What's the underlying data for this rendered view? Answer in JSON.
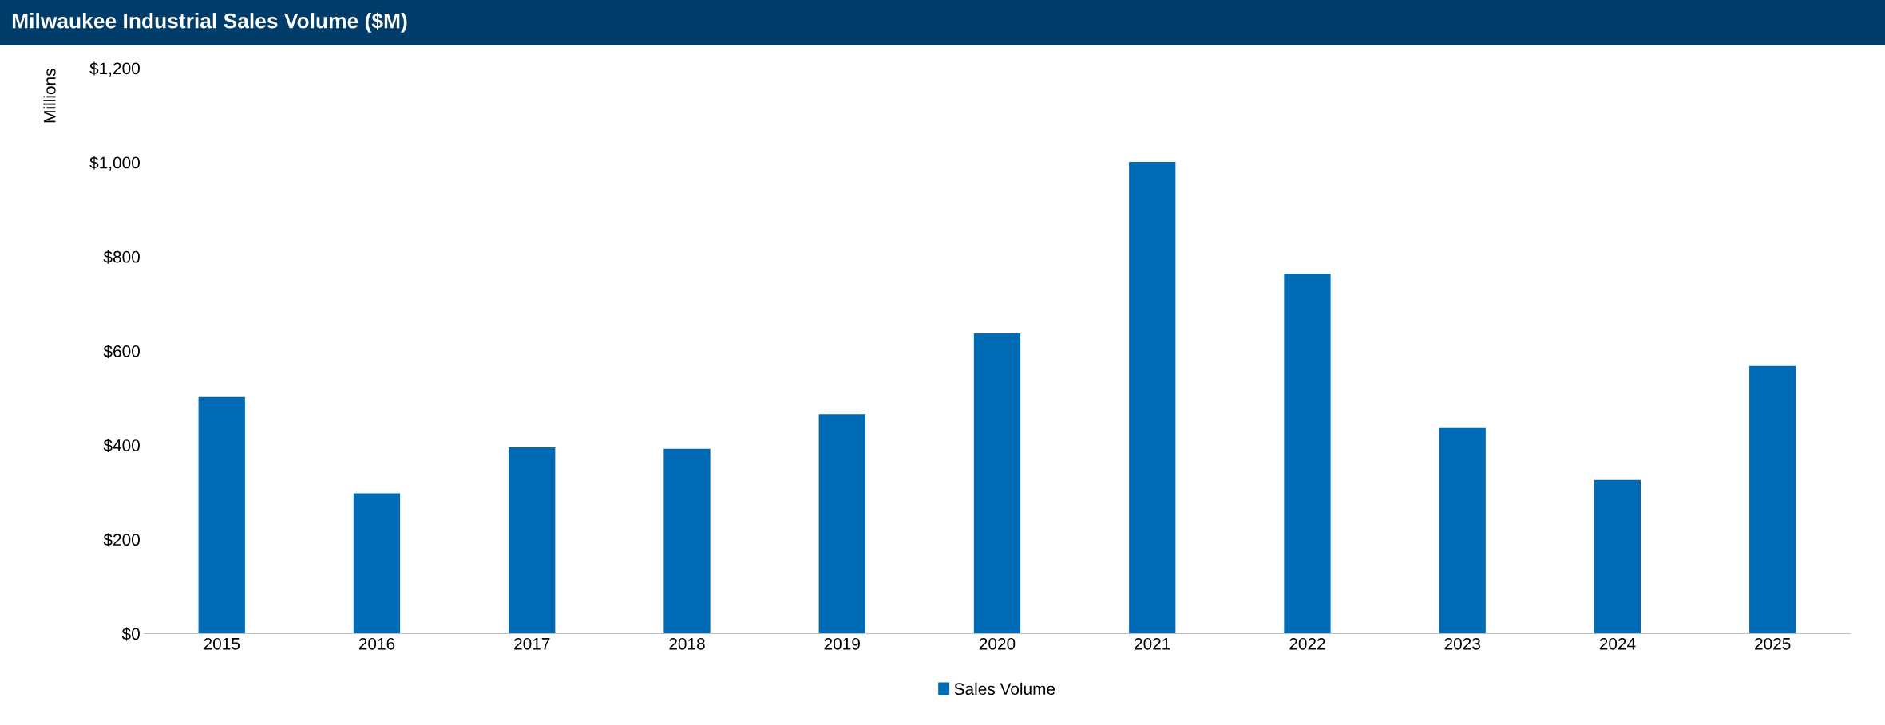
{
  "chart_data": {
    "type": "bar",
    "title": "Milwaukee Industrial Sales Volume ($M)",
    "ylabel": "Millions",
    "categories": [
      "2015",
      "2016",
      "2017",
      "2018",
      "2019",
      "2020",
      "2021",
      "2022",
      "2023",
      "2024",
      "2025"
    ],
    "series": [
      {
        "name": "Sales Volume",
        "color": "#006ab4",
        "values": [
          502,
          298,
          395,
          392,
          466,
          637,
          1001,
          764,
          438,
          326,
          568
        ]
      }
    ],
    "ylim": [
      0,
      1200
    ],
    "yticks": [
      {
        "value": 0,
        "label": "$0"
      },
      {
        "value": 200,
        "label": "$200"
      },
      {
        "value": 400,
        "label": "$400"
      },
      {
        "value": 600,
        "label": "$600"
      },
      {
        "value": 800,
        "label": "$800"
      },
      {
        "value": 1000,
        "label": "$1,000"
      },
      {
        "value": 1200,
        "label": "$1,200"
      }
    ],
    "grid": false,
    "legend": "bottom"
  }
}
